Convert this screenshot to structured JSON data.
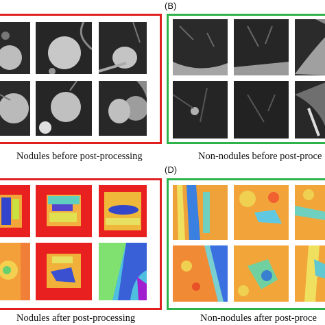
{
  "colors": {
    "nodule_frame": "#e02020",
    "non_nodule_frame": "#2db34a"
  },
  "figure": {
    "panels": [
      {
        "id": "A",
        "label": "",
        "caption": "Nodules before post-processing",
        "kind": "nodule-ct",
        "tiles": 6
      },
      {
        "id": "B",
        "label": "(B)",
        "caption": "Non-nodules before post-proce",
        "kind": "non-nodule-ct",
        "tiles": 6
      },
      {
        "id": "C",
        "label": "",
        "caption": "Nodules after post-processing",
        "kind": "nodule-heatmap",
        "tiles": 6
      },
      {
        "id": "D",
        "label": "(D)",
        "caption": "Non-nodules after post-proce",
        "kind": "non-nodule-heatmap",
        "tiles": 6
      }
    ]
  }
}
